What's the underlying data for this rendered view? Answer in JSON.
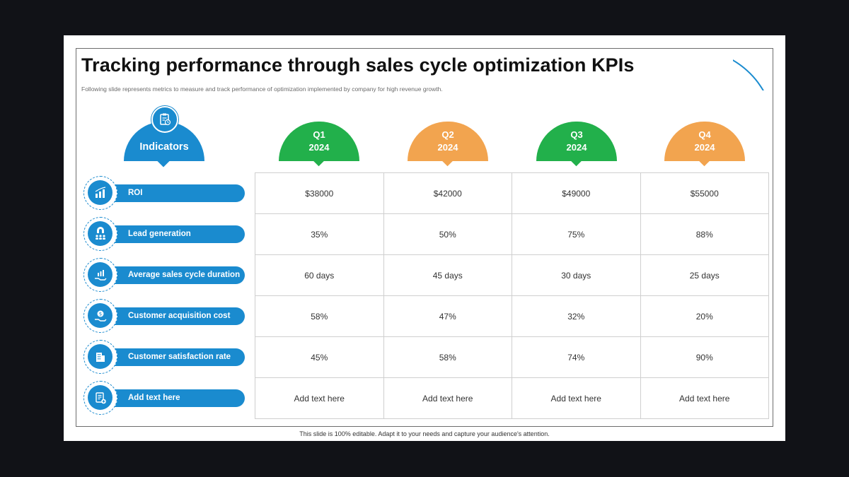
{
  "title": "Tracking performance through sales cycle optimization KPIs",
  "subtitle": "Following slide represents metrics to measure and track performance of optimization implemented by company for high revenue growth.",
  "footer": "This slide is 100% editable. Adapt it to your needs and capture your audience's attention.",
  "colors": {
    "blue": "#1a8bcf",
    "green": "#22b04b",
    "orange": "#f2a44f"
  },
  "indicators_header": {
    "label": "Indicators",
    "icon": "clipboard-clock-icon"
  },
  "quarters": [
    {
      "q": "Q1",
      "year": "2024",
      "color": "#22b04b"
    },
    {
      "q": "Q2",
      "year": "2024",
      "color": "#f2a44f"
    },
    {
      "q": "Q3",
      "year": "2024",
      "color": "#22b04b"
    },
    {
      "q": "Q4",
      "year": "2024",
      "color": "#f2a44f"
    }
  ],
  "rows": [
    {
      "label": "ROI",
      "icon": "roi-chart-icon",
      "values": [
        "$38000",
        "$42000",
        "$49000",
        "$55000"
      ]
    },
    {
      "label": "Lead generation",
      "icon": "magnet-people-icon",
      "values": [
        "35%",
        "50%",
        "75%",
        "88%"
      ]
    },
    {
      "label": "Average sales cycle duration",
      "icon": "hand-chart-icon",
      "values": [
        "60 days",
        "45 days",
        "30 days",
        "25 days"
      ]
    },
    {
      "label": "Customer acquisition cost",
      "icon": "hand-money-icon",
      "values": [
        "58%",
        "47%",
        "32%",
        "20%"
      ]
    },
    {
      "label": "Customer satisfaction rate",
      "icon": "building-icon",
      "values": [
        "45%",
        "58%",
        "74%",
        "90%"
      ]
    },
    {
      "label": "Add text here",
      "icon": "document-plus-icon",
      "values": [
        "Add text here",
        "Add text here",
        "Add text here",
        "Add text here"
      ]
    }
  ]
}
